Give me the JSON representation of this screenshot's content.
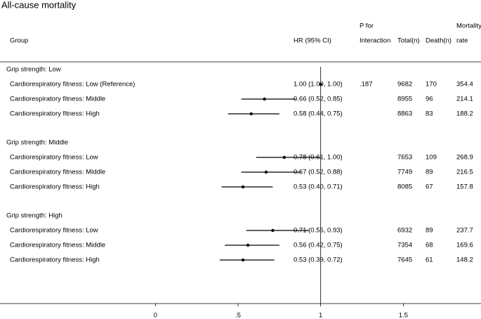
{
  "chart_data": {
    "type": "forest",
    "title": "All-cause mortality",
    "columns": {
      "group": "Group",
      "hr": "HR (95% CI)",
      "p": [
        "P for",
        "Interaction"
      ],
      "total": "Total(n)",
      "death": "Death(n)",
      "rate": [
        "Mortality",
        "rate"
      ]
    },
    "xlim": [
      -0.94,
      1.97
    ],
    "xticks": [
      0,
      {
        "value": 0.5,
        "label": ".5"
      },
      1,
      1.5
    ],
    "reference": 1,
    "groups": [
      {
        "name": "Grip strength: Low",
        "rows": [
          {
            "label": "Cardiorespiratory fitness: Low (Reference)",
            "hr": 1.0,
            "lo": 1.0,
            "hi": 1.0,
            "hr_label": "1.00 (1.00, 1.00)",
            "p": ".187",
            "total": 9682,
            "death": 170,
            "rate": 354.4
          },
          {
            "label": "Cardiorespiratory fitness: Middle",
            "hr": 0.66,
            "lo": 0.52,
            "hi": 0.85,
            "hr_label": "0.66 (0.52, 0.85)",
            "total": 8955,
            "death": 96,
            "rate": 214.1
          },
          {
            "label": "Cardiorespiratory fitness: High",
            "hr": 0.58,
            "lo": 0.44,
            "hi": 0.75,
            "hr_label": "0.58 (0.44, 0.75)",
            "total": 8863,
            "death": 83,
            "rate": 188.2
          }
        ]
      },
      {
        "name": "Grip strength: Middle",
        "rows": [
          {
            "label": "Cardiorespiratory fitness: Low",
            "hr": 0.78,
            "lo": 0.61,
            "hi": 1.0,
            "hr_label": "0.78 (0.61, 1.00)",
            "total": 7653,
            "death": 109,
            "rate": 268.9
          },
          {
            "label": "Cardiorespiratory fitness: Middle",
            "hr": 0.67,
            "lo": 0.52,
            "hi": 0.88,
            "hr_label": "0.67 (0.52, 0.88)",
            "total": 7749,
            "death": 89,
            "rate": 216.5
          },
          {
            "label": "Cardiorespiratory fitness: High",
            "hr": 0.53,
            "lo": 0.4,
            "hi": 0.71,
            "hr_label": "0.53 (0.40, 0.71)",
            "total": 8085,
            "death": 67,
            "rate": 157.8
          }
        ]
      },
      {
        "name": "Grip strength: High",
        "rows": [
          {
            "label": "Cardiorespiratory fitness: Low",
            "hr": 0.71,
            "lo": 0.55,
            "hi": 0.93,
            "hr_label": "0.71 (0.55, 0.93)",
            "total": 6932,
            "death": 89,
            "rate": 237.7
          },
          {
            "label": "Cardiorespiratory fitness: Middle",
            "hr": 0.56,
            "lo": 0.42,
            "hi": 0.75,
            "hr_label": "0.56 (0.42, 0.75)",
            "total": 7354,
            "death": 68,
            "rate": 169.6
          },
          {
            "label": "Cardiorespiratory fitness: High",
            "hr": 0.53,
            "lo": 0.39,
            "hi": 0.72,
            "hr_label": "0.53 (0.39, 0.72)",
            "total": 7645,
            "death": 61,
            "rate": 148.2
          }
        ]
      }
    ]
  }
}
